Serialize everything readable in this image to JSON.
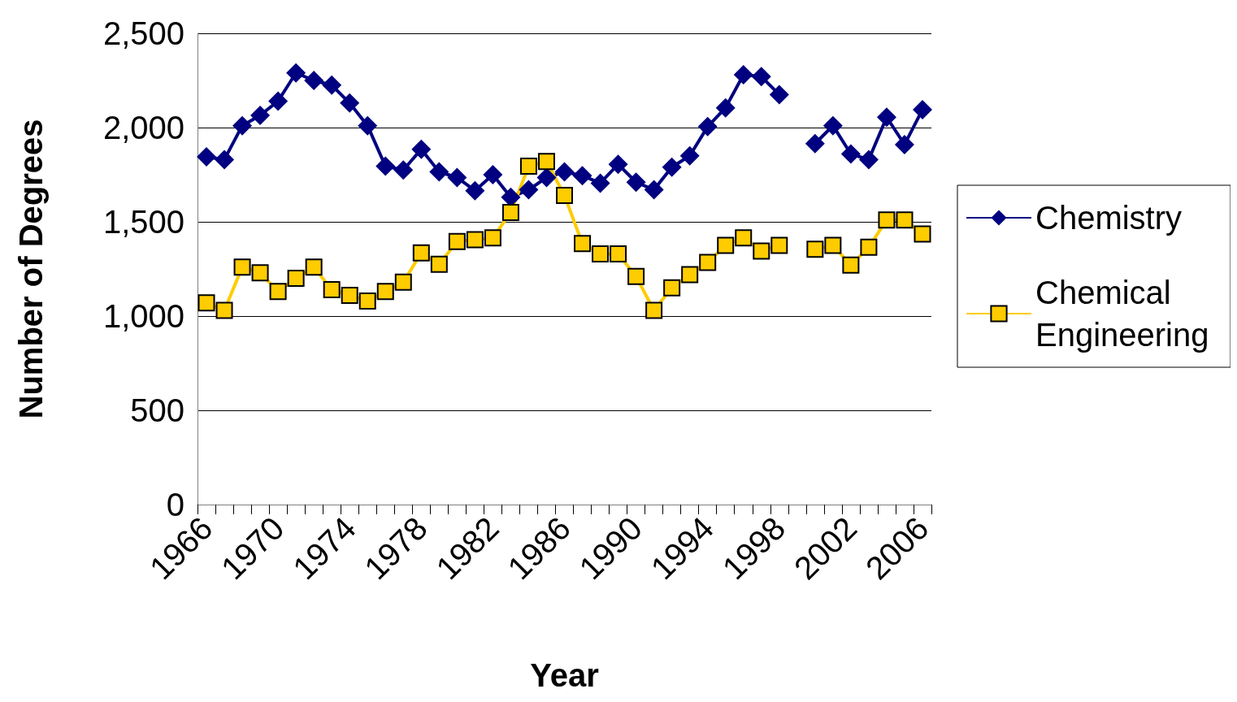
{
  "chart_data": {
    "type": "line",
    "xlabel": "Year",
    "ylabel": "Number of Degrees",
    "categories": [
      "1966",
      null,
      null,
      null,
      "1970",
      null,
      null,
      null,
      "1974",
      null,
      null,
      null,
      "1978",
      null,
      null,
      null,
      "1982",
      null,
      null,
      null,
      "1986",
      null,
      null,
      null,
      "1990",
      null,
      null,
      null,
      "1994",
      null,
      null,
      null,
      "1998",
      null,
      null,
      null,
      "2002",
      null,
      null,
      null,
      "2006"
    ],
    "series": [
      {
        "name": "Chemistry",
        "color": "#000080",
        "marker": "diamond",
        "values": [
          1845,
          1830,
          2010,
          2065,
          2140,
          2290,
          2250,
          2225,
          2130,
          2010,
          1795,
          1775,
          1885,
          1765,
          1735,
          1665,
          1750,
          1630,
          1670,
          1735,
          1765,
          1745,
          1705,
          1805,
          1710,
          1670,
          1790,
          1850,
          2005,
          2105,
          2280,
          2270,
          2175,
          null,
          1915,
          2010,
          1860,
          1830,
          2055,
          1910,
          2095
        ]
      },
      {
        "name": "Chemical Engineering",
        "color": "#ffcc00",
        "marker": "square",
        "values": [
          1070,
          1030,
          1260,
          1230,
          1130,
          1200,
          1260,
          1140,
          1110,
          1080,
          1130,
          1180,
          1335,
          1275,
          1395,
          1405,
          1415,
          1550,
          1795,
          1820,
          1640,
          1385,
          1330,
          1330,
          1210,
          1030,
          1150,
          1220,
          1285,
          1375,
          1415,
          1345,
          1375,
          null,
          1355,
          1375,
          1270,
          1365,
          1510,
          1510,
          1435
        ]
      }
    ],
    "ylim": [
      0,
      2500
    ],
    "yticks": [
      0,
      500,
      {
        "value": 1000,
        "label": "1,000"
      },
      {
        "value": 1500,
        "label": "1,500"
      },
      {
        "value": 2000,
        "label": "2,000"
      },
      {
        "value": 2500,
        "label": "2,500"
      }
    ],
    "grid": "y",
    "legend": "right",
    "line_style": "solid"
  }
}
